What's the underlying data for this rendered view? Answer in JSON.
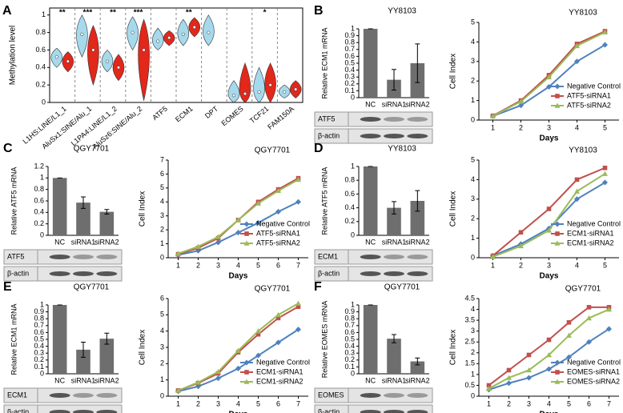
{
  "chart_data": [
    {
      "type": "violin",
      "panel": "A",
      "ylabel": "Methylation level",
      "categories": [
        "L1HS:LINE/L1_1",
        "AluSx1:SINE/Alu_1",
        "L1PA4:LINE/L1_2",
        "AluSz6:SINE/Alu_2",
        "ATF5",
        "ECM1",
        "DPT",
        "EOMES",
        "TCF21",
        "FAM150A"
      ],
      "significance": [
        "**",
        "***",
        "**",
        "***",
        null,
        "**",
        null,
        null,
        "*",
        null
      ],
      "ylim": [
        0,
        1.08
      ],
      "yticks": [
        0,
        0.2,
        0.4,
        0.6,
        0.8,
        1
      ],
      "series": [
        {
          "color": "#a6d9ec",
          "values": [
            0.52,
            0.78,
            0.47,
            0.8,
            0.7,
            0.78,
            0.8,
            0.08,
            0.12,
            0.12
          ],
          "low": [
            0.4,
            0.52,
            0.35,
            0.6,
            0.6,
            0.65,
            0.65,
            0,
            0,
            0.05
          ],
          "high": [
            0.62,
            1,
            0.6,
            0.98,
            0.85,
            0.95,
            1,
            0.25,
            0.4,
            0.2
          ]
        },
        {
          "color": "#e2271b",
          "values": [
            0.47,
            0.6,
            0.4,
            0.6,
            0.74,
            0.86,
            null,
            0.1,
            0.2,
            0.15
          ],
          "low": [
            0.35,
            0.2,
            0.25,
            0.02,
            0.65,
            0.75,
            null,
            0,
            0,
            0.05
          ],
          "high": [
            0.58,
            0.88,
            0.55,
            0.95,
            0.82,
            0.97,
            null,
            0.45,
            0.45,
            0.25
          ]
        }
      ]
    },
    {
      "type": "bar",
      "panel": "B",
      "title": "YY8103",
      "ylabel": "Relative ECM1 mRNA",
      "categories": [
        "NC",
        "siRNA1",
        "siRNA2"
      ],
      "values": [
        1,
        0.26,
        0.5
      ],
      "errors": [
        0,
        0.15,
        0.28
      ],
      "color": "#6e6e6e",
      "ylim": [
        0,
        1
      ],
      "yticks": [
        0,
        0.1,
        0.2,
        0.3,
        0.4,
        0.5,
        0.6,
        0.7,
        0.8,
        0.9,
        1
      ],
      "blot_labels": [
        "ATF5",
        "β-actin"
      ]
    },
    {
      "type": "line",
      "title": "YY8103",
      "xlabel": "Days",
      "ylabel": "Cell Index",
      "x": [
        1,
        2,
        3,
        4,
        5
      ],
      "xlim": [
        0.5,
        5.5
      ],
      "xticks": [
        1,
        2,
        3,
        4,
        5
      ],
      "ylim": [
        0,
        5
      ],
      "yticks": [
        0,
        1,
        2,
        3,
        4,
        5
      ],
      "legend": "lower right",
      "series": [
        {
          "name": "Negative Control",
          "color": "#4f81bd",
          "marker": "diamond",
          "values": [
            0.2,
            0.75,
            1.7,
            3,
            3.85
          ]
        },
        {
          "name": "ATF5-siRNA1",
          "color": "#c0504d",
          "marker": "square",
          "values": [
            0.22,
            1,
            2.3,
            3.9,
            4.55
          ]
        },
        {
          "name": "ATF5-siRNA2",
          "color": "#9bbb59",
          "marker": "triangle",
          "values": [
            0.2,
            0.95,
            2.2,
            3.8,
            4.5
          ]
        }
      ]
    },
    {
      "type": "bar",
      "panel": "C",
      "title": "QGY7701",
      "ylabel": "Relative ATF5 mRNA",
      "categories": [
        "NC",
        "siRNA1",
        "siRNA2"
      ],
      "values": [
        1,
        0.57,
        0.41
      ],
      "errors": [
        0,
        0.1,
        0.04
      ],
      "color": "#6e6e6e",
      "ylim": [
        0,
        1.2
      ],
      "yticks": [
        0,
        0.2,
        0.4,
        0.6,
        0.8,
        1,
        1.2
      ],
      "blot_labels": [
        "ATF5",
        "β-actin"
      ]
    },
    {
      "type": "line",
      "title": "QGY7701",
      "xlabel": "Days",
      "ylabel": "Cell Index",
      "x": [
        1,
        2,
        3,
        4,
        5,
        6,
        7
      ],
      "xlim": [
        0.5,
        7.5
      ],
      "xticks": [
        1,
        2,
        3,
        4,
        5,
        6,
        7
      ],
      "ylim": [
        0,
        7
      ],
      "yticks": [
        0,
        1,
        2,
        3,
        4,
        5,
        6,
        7
      ],
      "legend": "lower right",
      "series": [
        {
          "name": "Negative Control",
          "color": "#4f81bd",
          "marker": "diamond",
          "values": [
            0.2,
            0.5,
            1.1,
            1.8,
            2.5,
            3.3,
            4
          ]
        },
        {
          "name": "ATF5-siRNA1",
          "color": "#c0504d",
          "marker": "square",
          "values": [
            0.25,
            0.7,
            1.4,
            2.7,
            4,
            4.9,
            5.7
          ]
        },
        {
          "name": "ATF5-siRNA2",
          "color": "#9bbb59",
          "marker": "triangle",
          "values": [
            0.3,
            0.8,
            1.5,
            2.7,
            3.9,
            4.8,
            5.6
          ]
        }
      ]
    },
    {
      "type": "bar",
      "panel": "D",
      "title": "YY8103",
      "ylabel": "Relative ATF5 mRNA",
      "categories": [
        "NC",
        "siRNA1",
        "siRNA2"
      ],
      "values": [
        1,
        0.4,
        0.5
      ],
      "errors": [
        0,
        0.09,
        0.15
      ],
      "color": "#6e6e6e",
      "ylim": [
        0,
        1
      ],
      "yticks": [
        0,
        0.2,
        0.4,
        0.6,
        0.8,
        1
      ],
      "blot_labels": [
        "ECM1",
        "β-actin"
      ]
    },
    {
      "type": "line",
      "title": "YY8103",
      "xlabel": "Days",
      "ylabel": "Cell Index",
      "x": [
        1,
        2,
        3,
        4,
        5
      ],
      "xlim": [
        0.5,
        5.5
      ],
      "xticks": [
        1,
        2,
        3,
        4,
        5
      ],
      "ylim": [
        0,
        5
      ],
      "yticks": [
        0,
        1,
        2,
        3,
        4,
        5
      ],
      "legend": "lower right",
      "series": [
        {
          "name": "Negative Control",
          "color": "#4f81bd",
          "marker": "diamond",
          "values": [
            0.1,
            0.7,
            1.5,
            3,
            3.85
          ]
        },
        {
          "name": "ECM1-siRNA1",
          "color": "#c0504d",
          "marker": "square",
          "values": [
            0.1,
            1.3,
            2.5,
            4,
            4.6
          ]
        },
        {
          "name": "ECM1-siRNA2",
          "color": "#9bbb59",
          "marker": "triangle",
          "values": [
            0.05,
            0.6,
            1.4,
            3.4,
            4.3
          ]
        }
      ]
    },
    {
      "type": "bar",
      "panel": "E",
      "title": "QGY7701",
      "ylabel": "Relative ECM1 mRNA",
      "categories": [
        "NC",
        "siRNA1",
        "siRNA2"
      ],
      "values": [
        1,
        0.35,
        0.51
      ],
      "errors": [
        0,
        0.11,
        0.08
      ],
      "color": "#6e6e6e",
      "ylim": [
        0,
        1
      ],
      "yticks": [
        0,
        0.1,
        0.2,
        0.3,
        0.4,
        0.5,
        0.6,
        0.7,
        0.8,
        0.9,
        1
      ],
      "blot_labels": [
        "ECM1",
        "β-actin"
      ]
    },
    {
      "type": "line",
      "title": "QGY7701",
      "xlabel": "Days",
      "ylabel": "Cell Index",
      "x": [
        1,
        2,
        3,
        4,
        5,
        6,
        7
      ],
      "xlim": [
        0.5,
        7.5
      ],
      "xticks": [
        1,
        2,
        3,
        4,
        5,
        6,
        7
      ],
      "ylim": [
        0,
        6
      ],
      "yticks": [
        0,
        1,
        2,
        3,
        4,
        5,
        6
      ],
      "legend": "lower right",
      "series": [
        {
          "name": "Negative Control",
          "color": "#4f81bd",
          "marker": "diamond",
          "values": [
            0.3,
            0.6,
            1.1,
            1.7,
            2.5,
            3.3,
            4.1
          ]
        },
        {
          "name": "ECM1-siRNA1",
          "color": "#c0504d",
          "marker": "square",
          "values": [
            0.35,
            0.8,
            1.4,
            2.7,
            3.8,
            4.8,
            5.5
          ]
        },
        {
          "name": "ECM1-siRNA2",
          "color": "#9bbb59",
          "marker": "triangle",
          "values": [
            0.35,
            0.85,
            1.5,
            2.8,
            4,
            5,
            5.7
          ]
        }
      ]
    },
    {
      "type": "bar",
      "panel": "F",
      "title": "QGY7701",
      "ylabel": "Relative EOMES mRNA",
      "categories": [
        "NC",
        "siRNA1",
        "siRNA2"
      ],
      "values": [
        1,
        0.51,
        0.18
      ],
      "errors": [
        0,
        0.06,
        0.05
      ],
      "color": "#6e6e6e",
      "ylim": [
        0,
        1
      ],
      "yticks": [
        0,
        0.1,
        0.2,
        0.3,
        0.4,
        0.5,
        0.6,
        0.7,
        0.8,
        0.9,
        1
      ],
      "blot_labels": [
        "EOMES",
        "β-actin"
      ]
    },
    {
      "type": "line",
      "title": "QGY7701",
      "xlabel": "Days",
      "ylabel": "Cell Index",
      "x": [
        1,
        2,
        3,
        4,
        5,
        6,
        7
      ],
      "xlim": [
        0.5,
        7.5
      ],
      "xticks": [
        1,
        2,
        3,
        4,
        5,
        6,
        7
      ],
      "ylim": [
        0,
        4.5
      ],
      "yticks": [
        0,
        0.5,
        1,
        1.5,
        2,
        2.5,
        3,
        3.5,
        4,
        4.5
      ],
      "legend": "lower right",
      "series": [
        {
          "name": "Negative Control",
          "color": "#4f81bd",
          "marker": "diamond",
          "values": [
            0.3,
            0.6,
            0.85,
            1.25,
            1.8,
            2.5,
            3.1
          ]
        },
        {
          "name": "EOMES-siRNA1",
          "color": "#c0504d",
          "marker": "square",
          "values": [
            0.5,
            1.2,
            1.9,
            2.6,
            3.4,
            4.1,
            4.1
          ]
        },
        {
          "name": "EOMES-siRNA2",
          "color": "#9bbb59",
          "marker": "triangle",
          "values": [
            0.35,
            0.85,
            1.2,
            1.9,
            2.8,
            3.6,
            4
          ]
        }
      ]
    }
  ]
}
